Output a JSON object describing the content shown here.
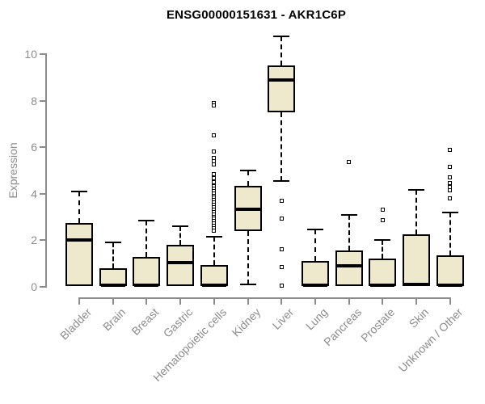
{
  "title": "ENSG00000151631 - AKR1C6P",
  "colors": {
    "box_fill": "#EEE8CD",
    "box_border": "#000000",
    "median": "#000000",
    "axis": "#8c8c8c",
    "title_text": "#000000",
    "background": "#ffffff"
  },
  "chart_data": {
    "type": "boxplot",
    "title": "ENSG00000151631 - AKR1C6P",
    "xlabel": "",
    "ylabel": "Expression",
    "ylim": [
      0,
      10.9
    ],
    "yticks": [
      0,
      2,
      4,
      6,
      8,
      10
    ],
    "grid": false,
    "legend": "none",
    "xtick_rotation": 45,
    "categories": [
      "Bladder",
      "Brain",
      "Breast",
      "Gastric",
      "Hematopoietic cells",
      "Kidney",
      "Liver",
      "Lung",
      "Pancreas",
      "Prostate",
      "Skin",
      "Unknown / Other"
    ],
    "boxes": [
      {
        "category": "Bladder",
        "whisker_low": 0.05,
        "q1": 0.05,
        "median": 2.0,
        "q3": 2.75,
        "whisker_high": 4.1,
        "outliers": []
      },
      {
        "category": "Brain",
        "whisker_low": 0.02,
        "q1": 0.02,
        "median": 0.08,
        "q3": 0.8,
        "whisker_high": 1.9,
        "outliers": []
      },
      {
        "category": "Breast",
        "whisker_low": 0.02,
        "q1": 0.02,
        "median": 0.08,
        "q3": 1.3,
        "whisker_high": 2.85,
        "outliers": []
      },
      {
        "category": "Gastric",
        "whisker_low": 0.05,
        "q1": 0.05,
        "median": 1.05,
        "q3": 1.8,
        "whisker_high": 2.6,
        "outliers": []
      },
      {
        "category": "Hematopoietic cells",
        "whisker_low": 0.02,
        "q1": 0.02,
        "median": 0.08,
        "q3": 0.95,
        "whisker_high": 2.15,
        "outliers": [
          7.9,
          7.78,
          6.5,
          5.8,
          5.55,
          5.4,
          5.25,
          4.85,
          4.68,
          4.5,
          4.32,
          4.22,
          4.12,
          4.02,
          3.92,
          3.82,
          3.72,
          3.62,
          3.52,
          3.42,
          3.32,
          3.22,
          3.12,
          3.02,
          2.92,
          2.82,
          2.72,
          2.62,
          2.52,
          2.42
        ]
      },
      {
        "category": "Kidney",
        "whisker_low": 0.1,
        "q1": 2.4,
        "median": 3.35,
        "q3": 4.35,
        "whisker_high": 5.0,
        "outliers": []
      },
      {
        "category": "Liver",
        "whisker_low": 4.55,
        "q1": 7.5,
        "median": 8.9,
        "q3": 9.5,
        "whisker_high": 10.75,
        "outliers": [
          3.7,
          2.95,
          1.6,
          0.85,
          0.05
        ]
      },
      {
        "category": "Lung",
        "whisker_low": 0.02,
        "q1": 0.02,
        "median": 0.08,
        "q3": 1.1,
        "whisker_high": 2.45,
        "outliers": []
      },
      {
        "category": "Pancreas",
        "whisker_low": 0.05,
        "q1": 0.05,
        "median": 0.9,
        "q3": 1.55,
        "whisker_high": 3.1,
        "outliers": [
          5.35
        ]
      },
      {
        "category": "Prostate",
        "whisker_low": 0.02,
        "q1": 0.02,
        "median": 0.08,
        "q3": 1.2,
        "whisker_high": 2.0,
        "outliers": [
          3.3,
          2.85
        ]
      },
      {
        "category": "Skin",
        "whisker_low": 0.05,
        "q1": 0.05,
        "median": 0.1,
        "q3": 2.25,
        "whisker_high": 4.15,
        "outliers": []
      },
      {
        "category": "Unknown / Other",
        "whisker_low": 0.02,
        "q1": 0.02,
        "median": 0.08,
        "q3": 1.35,
        "whisker_high": 3.2,
        "outliers": [
          5.9,
          5.15,
          4.7,
          4.45,
          4.3,
          4.15,
          3.8
        ]
      }
    ]
  }
}
